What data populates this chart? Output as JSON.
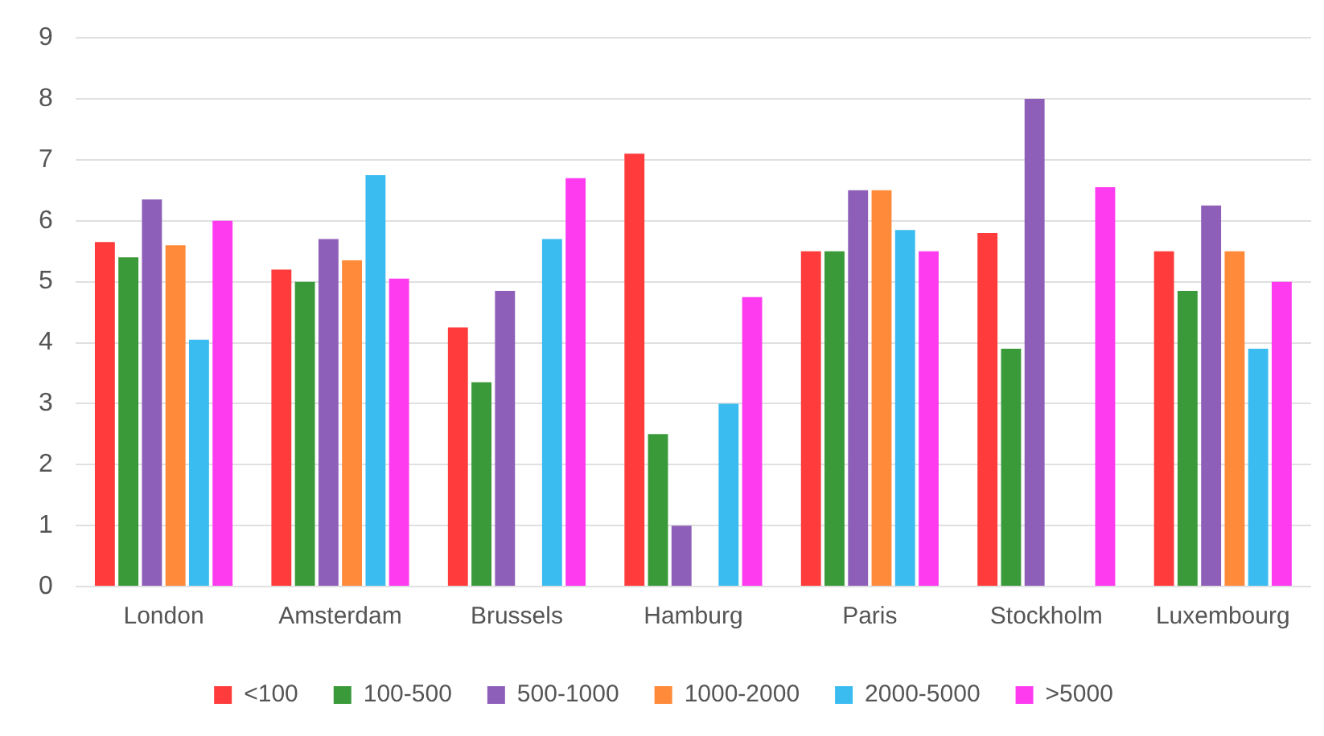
{
  "chart_data": {
    "type": "bar",
    "categories": [
      "London",
      "Amsterdam",
      "Brussels",
      "Hamburg",
      "Paris",
      "Stockholm",
      "Luxembourg"
    ],
    "series": [
      {
        "name": "<100",
        "color": "#ff3b3b",
        "values": [
          5.65,
          5.2,
          4.25,
          7.1,
          5.5,
          5.8,
          5.5
        ]
      },
      {
        "name": "100-500",
        "color": "#3a9a3a",
        "values": [
          5.4,
          5.0,
          3.35,
          2.5,
          5.5,
          3.9,
          4.85
        ]
      },
      {
        "name": "500-1000",
        "color": "#8e5fb8",
        "values": [
          6.35,
          5.7,
          4.85,
          1.0,
          6.5,
          8.0,
          6.25
        ]
      },
      {
        "name": "1000-2000",
        "color": "#ff8a3a",
        "values": [
          5.6,
          5.35,
          null,
          null,
          6.5,
          null,
          5.5
        ]
      },
      {
        "name": "2000-5000",
        "color": "#3bbcf0",
        "values": [
          4.05,
          6.75,
          5.7,
          3.0,
          5.85,
          null,
          3.9
        ]
      },
      {
        "name": ">5000",
        "color": "#ff3bf0",
        "values": [
          6.0,
          5.05,
          6.7,
          4.75,
          5.5,
          6.55,
          5.0
        ]
      }
    ],
    "ylim": [
      0,
      9
    ],
    "yticks": [
      0,
      1,
      2,
      3,
      4,
      5,
      6,
      7,
      8,
      9
    ],
    "grid": "y",
    "legend": "bottom"
  }
}
